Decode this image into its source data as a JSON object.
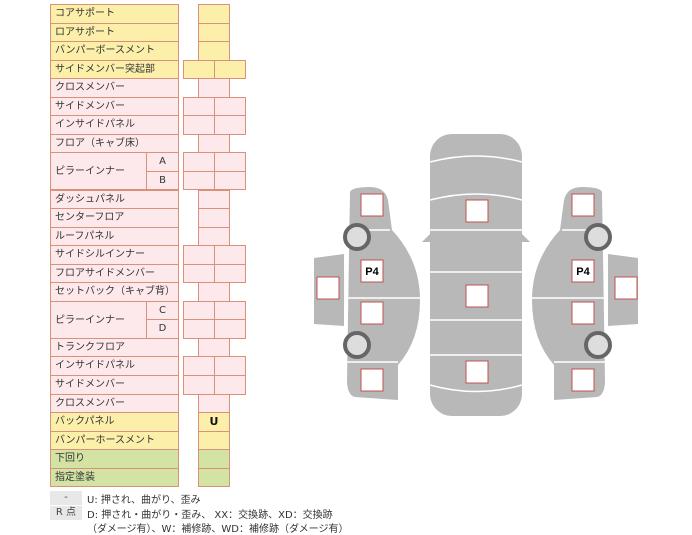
{
  "colors": {
    "yellow": "#fcefa9",
    "pink": "#fde9ec",
    "green": "#d2e3a4",
    "border": "#d9917a",
    "panel": "#b8b8b8"
  },
  "rows": [
    {
      "label": "コアサポート",
      "group": "y",
      "cells": 1,
      "values": [
        ""
      ]
    },
    {
      "label": "ロアサポート",
      "group": "y",
      "cells": 1,
      "values": [
        ""
      ]
    },
    {
      "label": "バンパーボースメント",
      "group": "y",
      "cells": 1,
      "values": [
        ""
      ]
    },
    {
      "label": "サイドメンバー突起部",
      "group": "y",
      "cells": 2,
      "values": [
        "",
        ""
      ]
    },
    {
      "label": "クロスメンバー",
      "group": "p",
      "cells": 1,
      "values": [
        ""
      ]
    },
    {
      "label": "サイドメンバー",
      "group": "p",
      "cells": 2,
      "values": [
        "",
        ""
      ]
    },
    {
      "label": "インサイドパネル",
      "group": "p",
      "cells": 2,
      "values": [
        "",
        ""
      ]
    },
    {
      "label": "フロア（キャブ床）",
      "group": "p",
      "cells": 1,
      "values": [
        ""
      ]
    },
    {
      "label": "ピラーインナー",
      "sub": "A",
      "group": "p",
      "cells": 2,
      "values": [
        "",
        ""
      ],
      "span": true
    },
    {
      "label": "",
      "sub": "B",
      "group": "p",
      "cells": 2,
      "values": [
        "",
        ""
      ]
    },
    {
      "label": "ダッシュパネル",
      "group": "p",
      "cells": 1,
      "values": [
        ""
      ]
    },
    {
      "label": "センターフロア",
      "group": "p",
      "cells": 1,
      "values": [
        ""
      ]
    },
    {
      "label": "ルーフパネル",
      "group": "p",
      "cells": 1,
      "values": [
        ""
      ]
    },
    {
      "label": "サイドシルインナー",
      "group": "p",
      "cells": 2,
      "values": [
        "",
        ""
      ]
    },
    {
      "label": "フロアサイドメンバー",
      "group": "p",
      "cells": 2,
      "values": [
        "",
        ""
      ]
    },
    {
      "label": "セットバック（キャブ背）",
      "group": "p",
      "cells": 1,
      "values": [
        ""
      ]
    },
    {
      "label": "ピラーインナー",
      "sub": "C",
      "group": "p",
      "cells": 2,
      "values": [
        "",
        ""
      ],
      "span": true
    },
    {
      "label": "",
      "sub": "D",
      "group": "p",
      "cells": 2,
      "values": [
        "",
        ""
      ]
    },
    {
      "label": "トランクフロア",
      "group": "p",
      "cells": 1,
      "values": [
        ""
      ]
    },
    {
      "label": "インサイドパネル",
      "group": "p",
      "cells": 2,
      "values": [
        "",
        ""
      ]
    },
    {
      "label": "サイドメンバー",
      "group": "p",
      "cells": 2,
      "values": [
        "",
        ""
      ]
    },
    {
      "label": "クロスメンバー",
      "group": "p",
      "cells": 1,
      "values": [
        ""
      ]
    },
    {
      "label": "バックパネル",
      "group": "y",
      "cells": 1,
      "values": [
        "U"
      ]
    },
    {
      "label": "バンパーホースメント",
      "group": "y",
      "cells": 1,
      "values": [
        ""
      ]
    },
    {
      "label": "下回り",
      "group": "g",
      "cells": 1,
      "values": [
        ""
      ]
    },
    {
      "label": "指定塗装",
      "group": "g",
      "cells": 1,
      "values": [
        ""
      ]
    }
  ],
  "diagram": {
    "left_marker": "P4",
    "right_marker": "P4"
  },
  "legend": {
    "key1": "-",
    "line1": "U: 押され、曲がり、歪み",
    "key2": "R 点",
    "line2": "D: 押され・曲がり・歪み、 XX：交換跡、XD：交換跡",
    "line3": "（ダメージ有）、W：補修跡、WD：補修跡（ダメージ有）"
  }
}
